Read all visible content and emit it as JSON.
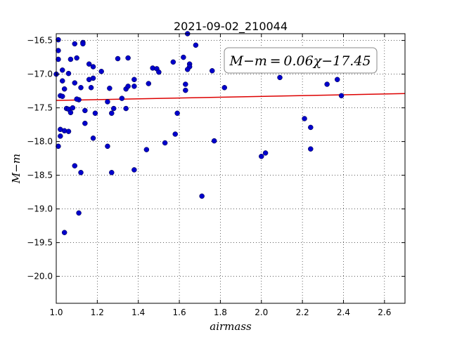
{
  "chart_data": {
    "type": "scatter",
    "title": "2021-09-02_210044",
    "xlabel": "airmass",
    "ylabel": "M−m",
    "xlim": [
      1.0,
      2.7
    ],
    "ylim": [
      -20.4,
      -16.4
    ],
    "y_inverted": true,
    "grid": true,
    "x_ticks": [
      "1.0",
      "1.2",
      "1.4",
      "1.6",
      "1.8",
      "2.0",
      "2.2",
      "2.4",
      "2.6"
    ],
    "x_tick_values": [
      1.0,
      1.2,
      1.4,
      1.6,
      1.8,
      2.0,
      2.2,
      2.4,
      2.6
    ],
    "y_ticks": [
      "−16.5",
      "−17.0",
      "−17.5",
      "−18.0",
      "−18.5",
      "−19.0",
      "−19.5",
      "−20.0"
    ],
    "y_tick_values": [
      -16.5,
      -17.0,
      -17.5,
      -18.0,
      -18.5,
      -19.0,
      -19.5,
      -20.0
    ],
    "annotation": "M−m = 0.06χ−17.45",
    "annotation_position": "top-right",
    "marker_color": "#0000cc",
    "fit_color": "#dd0000",
    "fit": {
      "slope": 0.06,
      "intercept": -17.45
    },
    "points": [
      {
        "x": 1.01,
        "y": -16.49
      },
      {
        "x": 1.0,
        "y": -17.0
      },
      {
        "x": 1.01,
        "y": -16.65
      },
      {
        "x": 1.01,
        "y": -16.78
      },
      {
        "x": 1.03,
        "y": -16.94
      },
      {
        "x": 1.03,
        "y": -17.1
      },
      {
        "x": 1.04,
        "y": -17.22
      },
      {
        "x": 1.02,
        "y": -17.32
      },
      {
        "x": 1.03,
        "y": -17.33
      },
      {
        "x": 1.05,
        "y": -17.51
      },
      {
        "x": 1.06,
        "y": -17.52
      },
      {
        "x": 1.07,
        "y": -17.57
      },
      {
        "x": 1.08,
        "y": -17.5
      },
      {
        "x": 1.06,
        "y": -16.99
      },
      {
        "x": 1.07,
        "y": -16.78
      },
      {
        "x": 1.09,
        "y": -16.55
      },
      {
        "x": 1.1,
        "y": -16.76
      },
      {
        "x": 1.09,
        "y": -17.13
      },
      {
        "x": 1.11,
        "y": -17.38
      },
      {
        "x": 1.1,
        "y": -17.37
      },
      {
        "x": 1.12,
        "y": -17.2
      },
      {
        "x": 1.13,
        "y": -16.53
      },
      {
        "x": 1.13,
        "y": -16.55
      },
      {
        "x": 1.14,
        "y": -17.54
      },
      {
        "x": 1.14,
        "y": -17.73
      },
      {
        "x": 1.16,
        "y": -16.85
      },
      {
        "x": 1.18,
        "y": -16.89
      },
      {
        "x": 1.16,
        "y": -17.08
      },
      {
        "x": 1.18,
        "y": -17.06
      },
      {
        "x": 1.17,
        "y": -17.2
      },
      {
        "x": 1.19,
        "y": -17.58
      },
      {
        "x": 1.02,
        "y": -17.82
      },
      {
        "x": 1.04,
        "y": -17.84
      },
      {
        "x": 1.06,
        "y": -17.85
      },
      {
        "x": 1.02,
        "y": -17.92
      },
      {
        "x": 1.01,
        "y": -18.07
      },
      {
        "x": 1.18,
        "y": -17.95
      },
      {
        "x": 1.09,
        "y": -18.36
      },
      {
        "x": 1.12,
        "y": -18.46
      },
      {
        "x": 1.11,
        "y": -19.06
      },
      {
        "x": 1.04,
        "y": -19.35
      },
      {
        "x": 1.22,
        "y": -16.96
      },
      {
        "x": 1.26,
        "y": -17.21
      },
      {
        "x": 1.25,
        "y": -17.41
      },
      {
        "x": 1.28,
        "y": -17.51
      },
      {
        "x": 1.27,
        "y": -17.58
      },
      {
        "x": 1.3,
        "y": -16.77
      },
      {
        "x": 1.32,
        "y": -17.36
      },
      {
        "x": 1.34,
        "y": -17.22
      },
      {
        "x": 1.35,
        "y": -16.76
      },
      {
        "x": 1.35,
        "y": -17.18
      },
      {
        "x": 1.38,
        "y": -17.08
      },
      {
        "x": 1.38,
        "y": -17.18
      },
      {
        "x": 1.34,
        "y": -17.51
      },
      {
        "x": 1.25,
        "y": -18.07
      },
      {
        "x": 1.27,
        "y": -18.46
      },
      {
        "x": 1.38,
        "y": -18.42
      },
      {
        "x": 1.44,
        "y": -18.12
      },
      {
        "x": 1.45,
        "y": -17.14
      },
      {
        "x": 1.47,
        "y": -16.91
      },
      {
        "x": 1.49,
        "y": -16.92
      },
      {
        "x": 1.5,
        "y": -16.97
      },
      {
        "x": 1.53,
        "y": -18.02
      },
      {
        "x": 1.57,
        "y": -16.82
      },
      {
        "x": 1.58,
        "y": -17.89
      },
      {
        "x": 1.59,
        "y": -17.58
      },
      {
        "x": 1.62,
        "y": -16.75
      },
      {
        "x": 1.63,
        "y": -17.15
      },
      {
        "x": 1.63,
        "y": -17.24
      },
      {
        "x": 1.64,
        "y": -16.4
      },
      {
        "x": 1.65,
        "y": -16.85
      },
      {
        "x": 1.65,
        "y": -16.89
      },
      {
        "x": 1.64,
        "y": -16.93
      },
      {
        "x": 1.68,
        "y": -16.57
      },
      {
        "x": 1.71,
        "y": -18.81
      },
      {
        "x": 1.76,
        "y": -16.95
      },
      {
        "x": 1.77,
        "y": -17.99
      },
      {
        "x": 1.82,
        "y": -17.2
      },
      {
        "x": 2.0,
        "y": -18.22
      },
      {
        "x": 2.02,
        "y": -18.17
      },
      {
        "x": 2.09,
        "y": -17.05
      },
      {
        "x": 2.21,
        "y": -17.66
      },
      {
        "x": 2.24,
        "y": -17.79
      },
      {
        "x": 2.24,
        "y": -18.11
      },
      {
        "x": 2.32,
        "y": -17.15
      },
      {
        "x": 2.37,
        "y": -17.08
      },
      {
        "x": 2.39,
        "y": -17.32
      }
    ]
  }
}
